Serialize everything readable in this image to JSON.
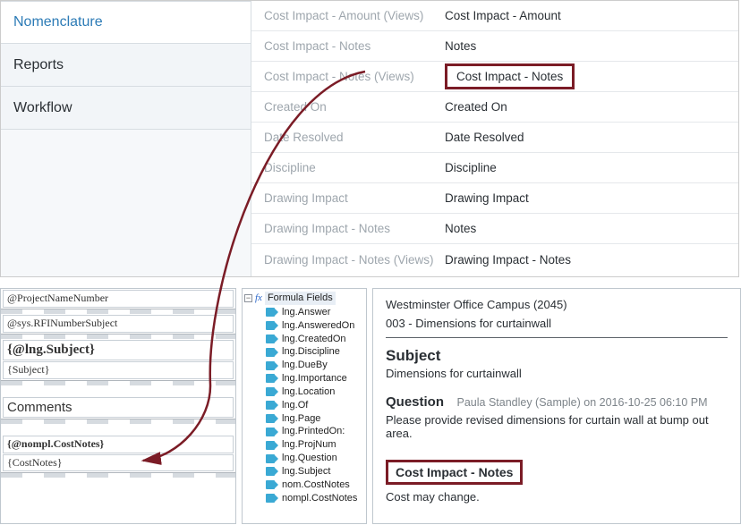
{
  "sidebar": {
    "items": [
      {
        "label": "Nomenclature",
        "active": true
      },
      {
        "label": "Reports",
        "active": false
      },
      {
        "label": "Workflow",
        "active": false
      }
    ]
  },
  "fieldTable": {
    "highlightIndex": 2,
    "rows": [
      {
        "name": "Cost Impact - Amount (Views)",
        "value": "Cost Impact - Amount"
      },
      {
        "name": "Cost Impact - Notes",
        "value": "Notes"
      },
      {
        "name": "Cost Impact - Notes (Views)",
        "value": "Cost Impact - Notes"
      },
      {
        "name": "Created On",
        "value": "Created On"
      },
      {
        "name": "Date Resolved",
        "value": "Date Resolved"
      },
      {
        "name": "Discipline",
        "value": "Discipline"
      },
      {
        "name": "Drawing Impact",
        "value": "Drawing Impact"
      },
      {
        "name": "Drawing Impact - Notes",
        "value": "Notes"
      },
      {
        "name": "Drawing Impact - Notes (Views)",
        "value": "Drawing Impact - Notes"
      }
    ]
  },
  "designer": {
    "rows": [
      {
        "text": "@ProjectNameNumber",
        "style": "plain"
      },
      {
        "text": "@sys.RFINumberSubject",
        "style": "plain"
      },
      {
        "text": "{@lng.Subject}",
        "style": "boldbig"
      },
      {
        "text": "{Subject}",
        "style": "plain"
      },
      {
        "text": "Comments",
        "style": "sans"
      },
      {
        "text": "{@nompl.CostNotes}",
        "style": "bold"
      },
      {
        "text": "{CostNotes}",
        "style": "plain"
      }
    ]
  },
  "tree": {
    "rootLabel": "Formula Fields",
    "nodes": [
      "lng.Answer",
      "lng.AnsweredOn",
      "lng.CreatedOn",
      "lng.Discipline",
      "lng.DueBy",
      "lng.Importance",
      "lng.Location",
      "lng.Of",
      "lng.Page",
      "lng.PrintedOn:",
      "lng.ProjNum",
      "lng.Question",
      "lng.Subject",
      "nom.CostNotes",
      "nompl.CostNotes"
    ]
  },
  "preview": {
    "projectLine": "Westminster Office Campus (2045)",
    "rfiLine": "003 - Dimensions for curtainwall",
    "subjectHeading": "Subject",
    "subjectValue": "Dimensions for curtainwall",
    "questionLabel": "Question",
    "questionMeta": "Paula Standley (Sample) on 2016-10-25 06:10 PM",
    "questionBody": "Please provide revised dimensions for curtain wall at bump out area.",
    "costNotesLabel": "Cost Impact - Notes",
    "costNotesValue": "Cost may change."
  },
  "colors": {
    "highlight_border": "#7b1c26",
    "arrow": "#7b1c26",
    "sidebar_active_text": "#2c7bb6",
    "muted_text": "#9ea6ad"
  }
}
